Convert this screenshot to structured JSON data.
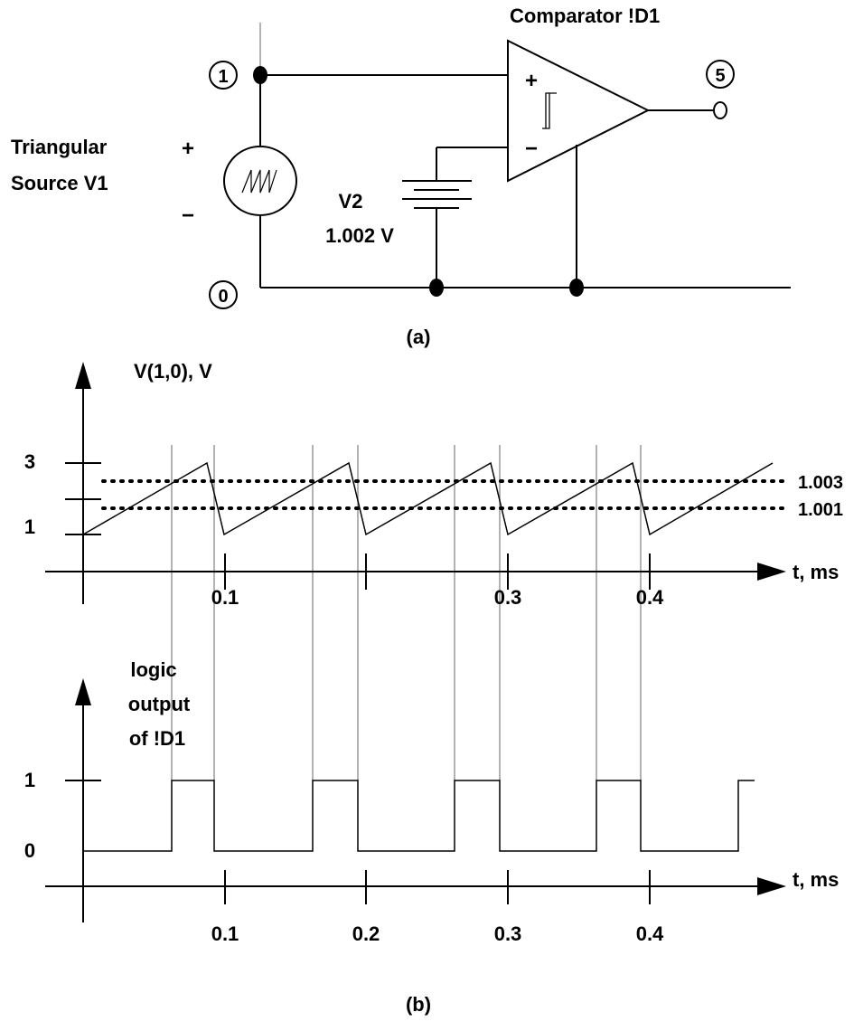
{
  "circuit": {
    "title": "Comparator !D1",
    "source_label_line1": "Triangular",
    "source_label_line2": "Source V1",
    "plus": "+",
    "minus": "−",
    "battery_name": "V2",
    "battery_value": "1.002 V",
    "node_1": "1",
    "node_0": "0",
    "node_5": "5",
    "caption": "(a)"
  },
  "top_plot": {
    "ylabel": "V(1,0), V",
    "y_ticks": [
      "3",
      "1"
    ],
    "x_ticks": [
      "0.1",
      "0.3",
      "0.4"
    ],
    "xlabel": "t, ms",
    "threshold_high": "1.003",
    "threshold_low": "1.001"
  },
  "bottom_plot": {
    "ylabel_line1": "logic",
    "ylabel_line2": "output",
    "ylabel_line3": "of !D1",
    "y_ticks": [
      "1",
      "0"
    ],
    "x_ticks": [
      "0.1",
      "0.2",
      "0.3",
      "0.4"
    ],
    "xlabel": "t, ms",
    "caption": "(b)"
  }
}
